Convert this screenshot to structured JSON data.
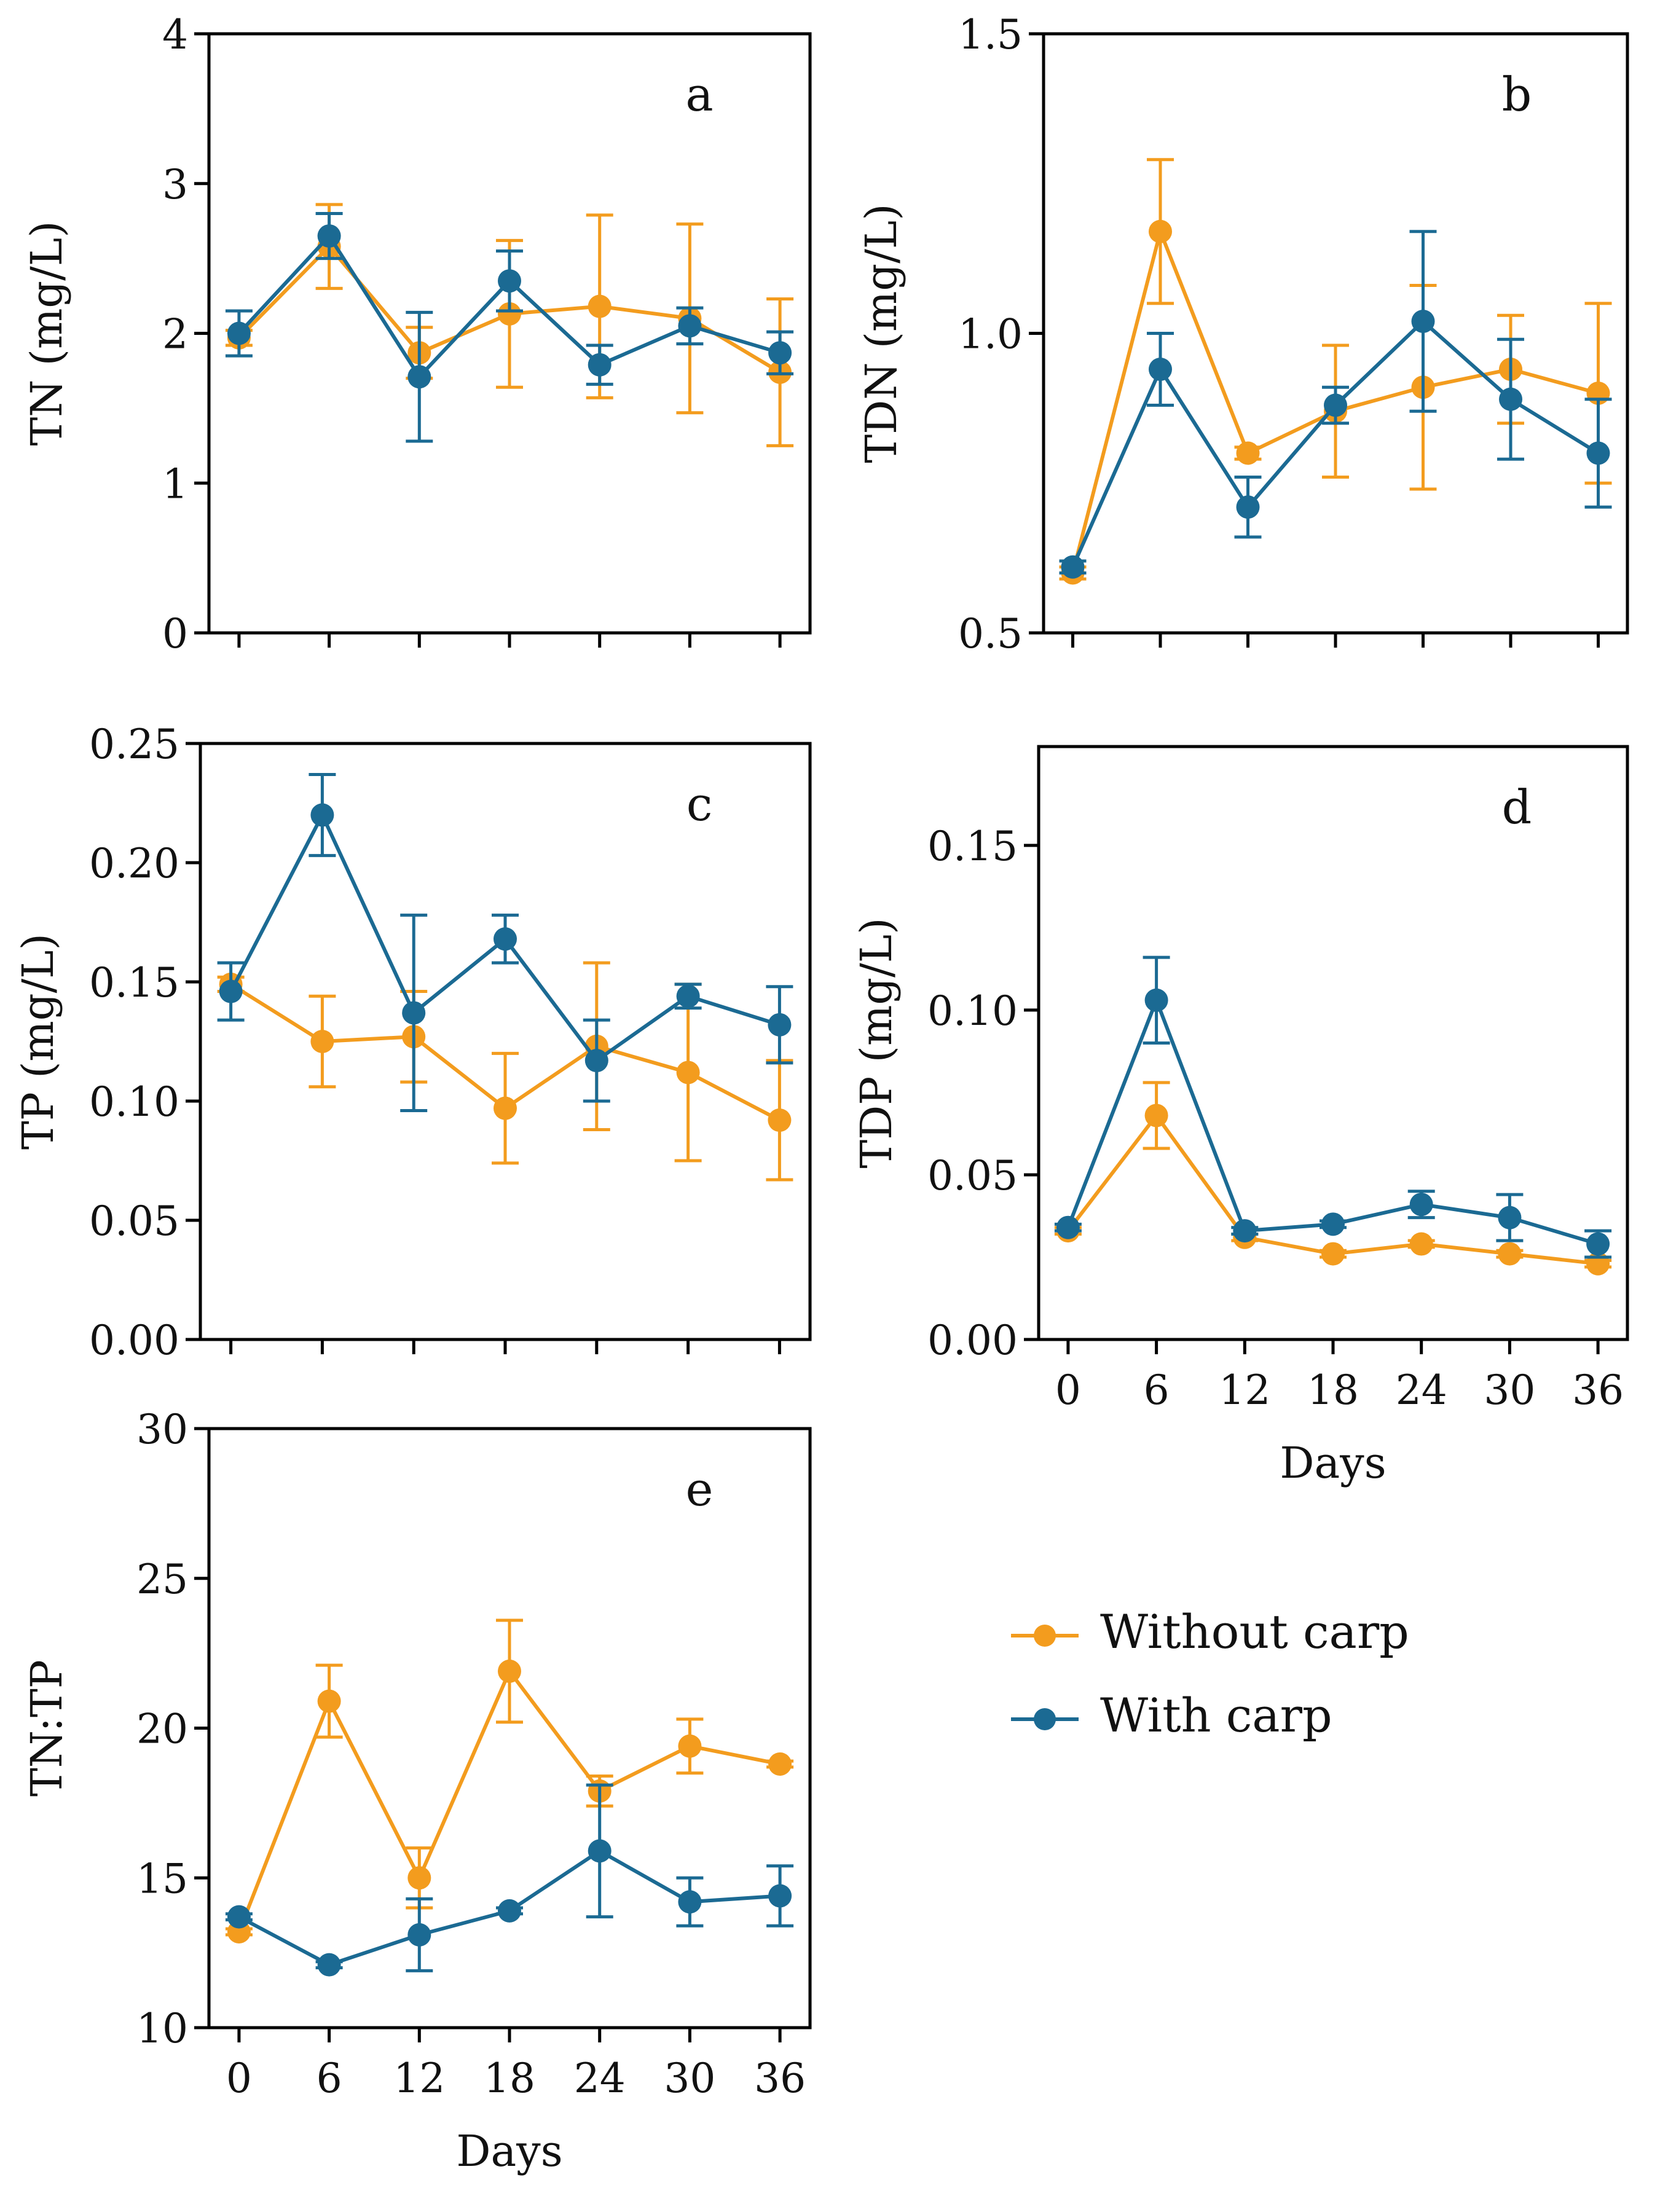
{
  "colors": {
    "without": "#F39C1E",
    "with": "#1B6A93",
    "axis": "#000000"
  },
  "legend": {
    "items": [
      {
        "label": "Without carp",
        "color": "#F39C1E"
      },
      {
        "label": "With carp",
        "color": "#1B6A93"
      }
    ]
  },
  "chart_data": [
    {
      "type": "line",
      "panel": "a",
      "ylabel": "TN (mg/L)",
      "xlabel": "",
      "x": [
        0,
        6,
        12,
        18,
        24,
        30,
        36
      ],
      "xticks": [
        "0",
        "6",
        "12",
        "18",
        "24",
        "30",
        "36"
      ],
      "show_xticklabels": false,
      "ylim": [
        0,
        4
      ],
      "yticks": [
        0,
        1,
        2,
        3,
        4
      ],
      "ytick_labels": [
        "0",
        "1",
        "2",
        "3",
        "4"
      ],
      "series": [
        {
          "name": "Without carp",
          "values": [
            1.97,
            2.58,
            1.87,
            2.13,
            2.18,
            2.1,
            1.74
          ],
          "err": [
            0.05,
            0.28,
            0.17,
            0.49,
            0.61,
            0.63,
            0.49
          ]
        },
        {
          "name": "With carp",
          "values": [
            2.0,
            2.65,
            1.71,
            2.35,
            1.79,
            2.05,
            1.87
          ],
          "err": [
            0.15,
            0.15,
            0.43,
            0.2,
            0.13,
            0.12,
            0.14
          ]
        }
      ]
    },
    {
      "type": "line",
      "panel": "b",
      "ylabel": "TDN (mg/L)",
      "xlabel": "",
      "x": [
        0,
        6,
        12,
        18,
        24,
        30,
        36
      ],
      "xticks": [
        "0",
        "6",
        "12",
        "18",
        "24",
        "30",
        "36"
      ],
      "show_xticklabels": false,
      "ylim": [
        0.5,
        1.5
      ],
      "yticks": [
        0.5,
        1.0,
        1.5
      ],
      "ytick_labels": [
        "0.5",
        "1.0",
        "1.5"
      ],
      "series": [
        {
          "name": "Without carp",
          "values": [
            0.6,
            1.17,
            0.8,
            0.87,
            0.91,
            0.94,
            0.9
          ],
          "err": [
            0.01,
            0.12,
            0.01,
            0.11,
            0.17,
            0.09,
            0.15
          ]
        },
        {
          "name": "With carp",
          "values": [
            0.61,
            0.94,
            0.71,
            0.88,
            1.02,
            0.89,
            0.8
          ],
          "err": [
            0.01,
            0.06,
            0.05,
            0.03,
            0.15,
            0.1,
            0.09
          ]
        }
      ]
    },
    {
      "type": "line",
      "panel": "c",
      "ylabel": "TP (mg/L)",
      "xlabel": "",
      "x": [
        0,
        6,
        12,
        18,
        24,
        30,
        36
      ],
      "xticks": [
        "0",
        "6",
        "12",
        "18",
        "24",
        "30",
        "36"
      ],
      "show_xticklabels": false,
      "ylim": [
        0,
        0.25
      ],
      "yticks": [
        0,
        0.05,
        0.1,
        0.15,
        0.2,
        0.25
      ],
      "ytick_labels": [
        "0.00",
        "0.05",
        "0.10",
        "0.15",
        "0.20",
        "0.25"
      ],
      "series": [
        {
          "name": "Without carp",
          "values": [
            0.149,
            0.125,
            0.127,
            0.097,
            0.123,
            0.112,
            0.092
          ],
          "err": [
            0.003,
            0.019,
            0.019,
            0.023,
            0.035,
            0.037,
            0.025
          ]
        },
        {
          "name": "With carp",
          "values": [
            0.146,
            0.22,
            0.137,
            0.168,
            0.117,
            0.144,
            0.132
          ],
          "err": [
            0.012,
            0.017,
            0.041,
            0.01,
            0.017,
            0.005,
            0.016
          ]
        }
      ]
    },
    {
      "type": "line",
      "panel": "d",
      "ylabel": "TDP (mg/L)",
      "xlabel": "Days",
      "x": [
        0,
        6,
        12,
        18,
        24,
        30,
        36
      ],
      "xticks": [
        "0",
        "6",
        "12",
        "18",
        "24",
        "30",
        "36"
      ],
      "show_xticklabels": true,
      "ylim": [
        0,
        0.18
      ],
      "yticks": [
        0,
        0.05,
        0.1,
        0.15
      ],
      "ytick_labels": [
        "0.00",
        "0.05",
        "0.10",
        "0.15"
      ],
      "series": [
        {
          "name": "Without carp",
          "values": [
            0.033,
            0.068,
            0.031,
            0.026,
            0.029,
            0.026,
            0.023
          ],
          "err": [
            0.001,
            0.01,
            0.001,
            0.001,
            0.001,
            0.001,
            0.001
          ]
        },
        {
          "name": "With carp",
          "values": [
            0.034,
            0.103,
            0.033,
            0.035,
            0.041,
            0.037,
            0.029
          ],
          "err": [
            0.001,
            0.013,
            0.001,
            0.001,
            0.004,
            0.007,
            0.004
          ]
        }
      ]
    },
    {
      "type": "line",
      "panel": "e",
      "ylabel": "TN:TP",
      "xlabel": "Days",
      "x": [
        0,
        6,
        12,
        18,
        24,
        30,
        36
      ],
      "xticks": [
        "0",
        "6",
        "12",
        "18",
        "24",
        "30",
        "36"
      ],
      "show_xticklabels": true,
      "ylim": [
        10,
        30
      ],
      "yticks": [
        10,
        15,
        20,
        25,
        30
      ],
      "ytick_labels": [
        "10",
        "15",
        "20",
        "25",
        "30"
      ],
      "series": [
        {
          "name": "Without carp",
          "values": [
            13.2,
            20.9,
            15.0,
            21.9,
            17.9,
            19.4,
            18.8
          ],
          "err": [
            0.1,
            1.2,
            1.0,
            1.7,
            0.5,
            0.9,
            0.1
          ]
        },
        {
          "name": "With carp",
          "values": [
            13.7,
            12.1,
            13.1,
            13.9,
            15.9,
            14.2,
            14.4
          ],
          "err": [
            0.1,
            0.1,
            1.2,
            0.1,
            2.2,
            0.8,
            1.0
          ]
        }
      ]
    }
  ]
}
